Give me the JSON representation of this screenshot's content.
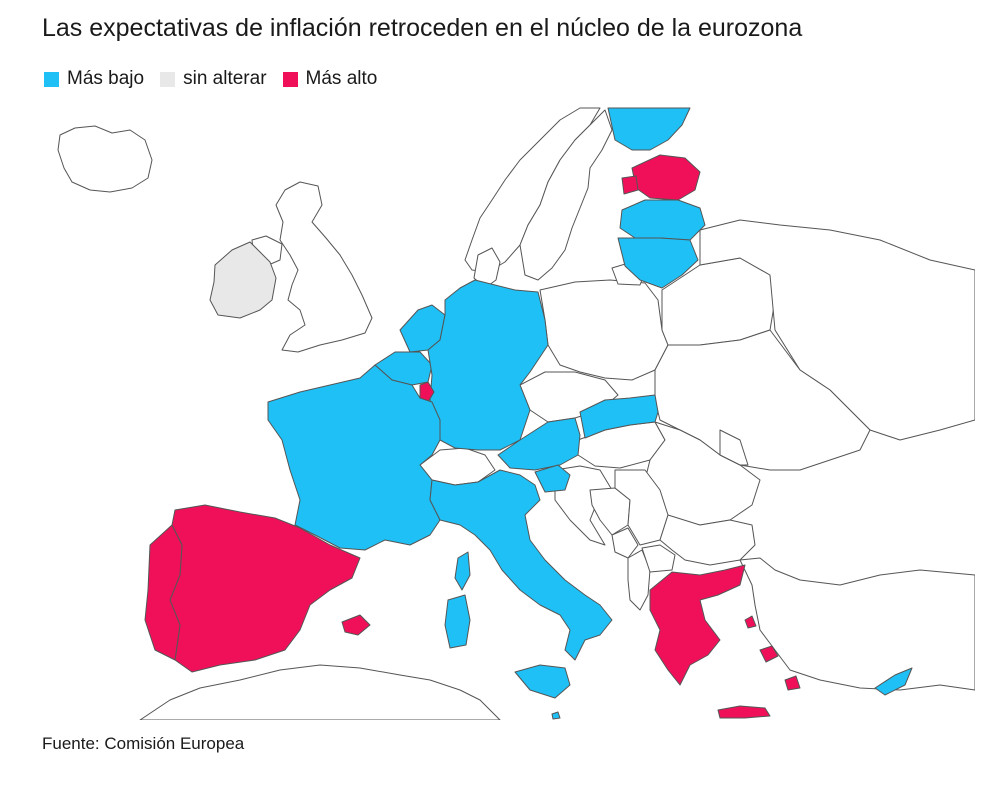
{
  "title": "Las expectativas de inflación retroceden en el núcleo de la eurozona",
  "legend": [
    {
      "label": "Más bajo",
      "color": "#1ec0f5"
    },
    {
      "label": "sin alterar",
      "color": "#e8e8e8"
    },
    {
      "label": "Más alto",
      "color": "#f0105a"
    }
  ],
  "source": "Fuente: Comisión Europea",
  "map": {
    "colors": {
      "lower": "#1ec0f5",
      "unchanged": "#e8e8e8",
      "higher": "#f0105a",
      "non_eurozone": "#ffffff",
      "border": "#555555"
    },
    "countries": [
      {
        "name": "Finland",
        "category": "lower"
      },
      {
        "name": "Estonia",
        "category": "higher"
      },
      {
        "name": "Latvia",
        "category": "lower"
      },
      {
        "name": "Lithuania",
        "category": "lower"
      },
      {
        "name": "Ireland",
        "category": "unchanged"
      },
      {
        "name": "Netherlands",
        "category": "lower"
      },
      {
        "name": "Belgium",
        "category": "lower"
      },
      {
        "name": "Luxembourg",
        "category": "higher"
      },
      {
        "name": "Germany",
        "category": "lower"
      },
      {
        "name": "France",
        "category": "lower"
      },
      {
        "name": "Austria",
        "category": "lower"
      },
      {
        "name": "Slovakia",
        "category": "lower"
      },
      {
        "name": "Slovenia",
        "category": "lower"
      },
      {
        "name": "Italy",
        "category": "lower"
      },
      {
        "name": "Spain",
        "category": "higher"
      },
      {
        "name": "Portugal",
        "category": "higher"
      },
      {
        "name": "Greece",
        "category": "higher"
      },
      {
        "name": "Cyprus",
        "category": "lower"
      },
      {
        "name": "Malta",
        "category": "lower"
      }
    ]
  }
}
